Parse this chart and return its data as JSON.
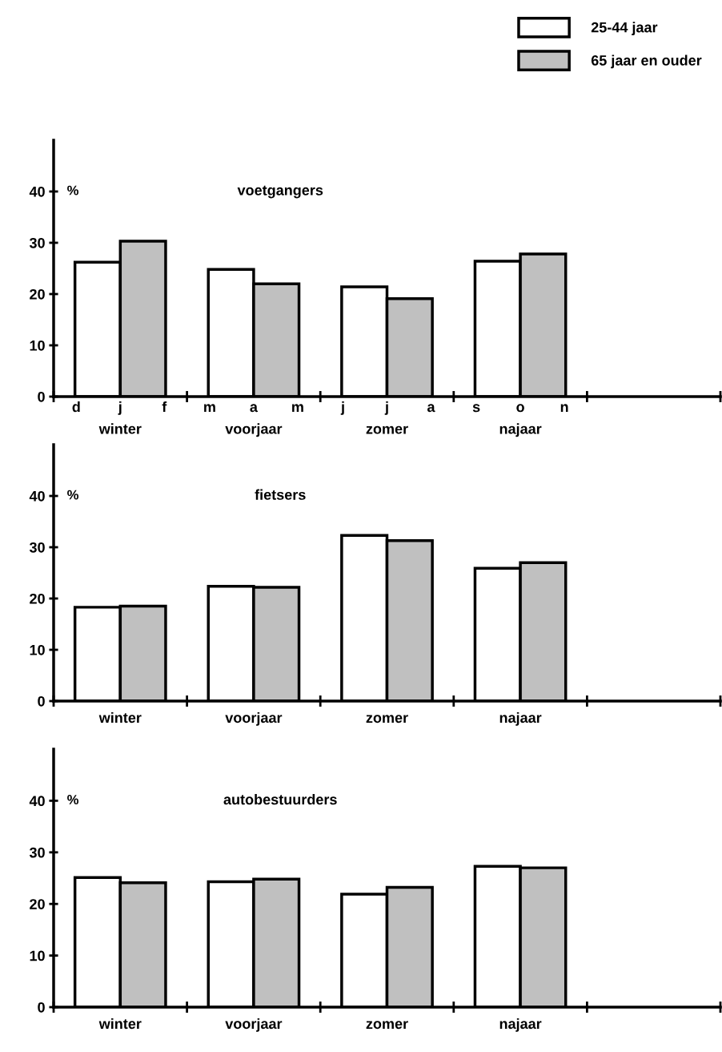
{
  "chart_data": [
    {
      "type": "bar",
      "title": "voetgangers",
      "ylabel": "%",
      "categories": [
        "winter",
        "voorjaar",
        "zomer",
        "najaar"
      ],
      "annotations": [
        "d",
        "j",
        "f",
        "m",
        "a",
        "m",
        "j",
        "j",
        "a",
        "s",
        "o",
        "n"
      ],
      "series": [
        {
          "name": "25-44 jaar",
          "color": "#ffffff",
          "values": [
            26.2,
            24.8,
            21.4,
            26.4
          ]
        },
        {
          "name": "65 jaar en ouder",
          "color": "#c0c0c0",
          "values": [
            30.3,
            22.0,
            19.1,
            27.8
          ]
        }
      ],
      "ylim": [
        0,
        50
      ],
      "yticks": [
        0,
        10,
        20,
        30,
        40
      ],
      "grid": false,
      "legend": "top right"
    },
    {
      "type": "bar",
      "title": "fietsers",
      "ylabel": "%",
      "categories": [
        "winter",
        "voorjaar",
        "zomer",
        "najaar"
      ],
      "series": [
        {
          "color": "#ffffff",
          "values": [
            18.3,
            22.4,
            32.3,
            25.9
          ]
        },
        {
          "color": "#c0c0c0",
          "values": [
            18.5,
            22.2,
            31.3,
            27.0
          ]
        }
      ],
      "ylim": [
        0,
        50
      ],
      "yticks": [
        0,
        10,
        20,
        30,
        40
      ],
      "grid": false
    },
    {
      "type": "bar",
      "title": "autobestuurders",
      "ylabel": "%",
      "categories": [
        "winter",
        "voorjaar",
        "zomer",
        "najaar"
      ],
      "series": [
        {
          "color": "#ffffff",
          "values": [
            25.1,
            24.3,
            21.9,
            27.3
          ]
        },
        {
          "color": "#c0c0c0",
          "values": [
            24.1,
            24.8,
            23.2,
            27.0
          ]
        }
      ],
      "ylim": [
        0,
        50
      ],
      "yticks": [
        0,
        10,
        20,
        30,
        40
      ],
      "grid": false
    }
  ]
}
